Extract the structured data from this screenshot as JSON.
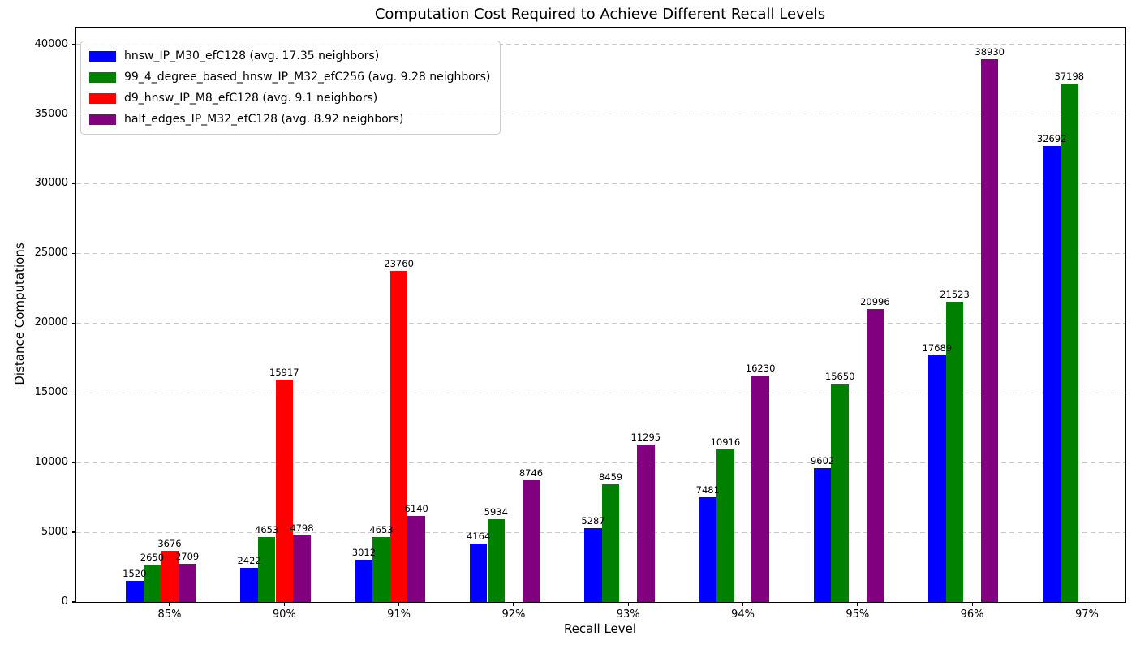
{
  "chart_data": {
    "type": "bar",
    "title": "Computation Cost Required to Achieve Different Recall Levels",
    "xlabel": "Recall Level",
    "ylabel": "Distance Computations",
    "categories": [
      "85%",
      "90%",
      "91%",
      "92%",
      "93%",
      "94%",
      "95%",
      "96%",
      "97%"
    ],
    "series": [
      {
        "name": "hnsw_IP_M30_efC128 (avg. 17.35 neighbors)",
        "color": "#0000ff",
        "values": [
          1520,
          2422,
          3012,
          4164,
          5287,
          7481,
          9602,
          17689,
          32692
        ]
      },
      {
        "name": "99_4_degree_based_hnsw_IP_M32_efC256 (avg. 9.28 neighbors)",
        "color": "#008000",
        "values": [
          2650,
          4653,
          4653,
          5934,
          8459,
          10916,
          15650,
          21523,
          37198
        ]
      },
      {
        "name": "d9_hnsw_IP_M8_efC128 (avg. 9.1 neighbors)",
        "color": "#ff0000",
        "values": [
          3676,
          15917,
          23760,
          null,
          null,
          null,
          null,
          null,
          null
        ]
      },
      {
        "name": "half_edges_IP_M32_efC128 (avg. 8.92 neighbors)",
        "color": "#800080",
        "values": [
          2709,
          4798,
          6140,
          8746,
          11295,
          16230,
          20996,
          38930,
          null
        ]
      }
    ],
    "yticks": [
      0,
      5000,
      10000,
      15000,
      20000,
      25000,
      30000,
      35000,
      40000
    ],
    "ylim": [
      0,
      41200
    ],
    "grid": "horizontal-dashed",
    "legend_position": "upper-left",
    "bar_value_labels": true,
    "colors": {
      "background": "#ffffff",
      "grid": "#c9c9c9",
      "spine": "#000000",
      "text": "#000000",
      "legend_border": "#cccccc"
    }
  }
}
